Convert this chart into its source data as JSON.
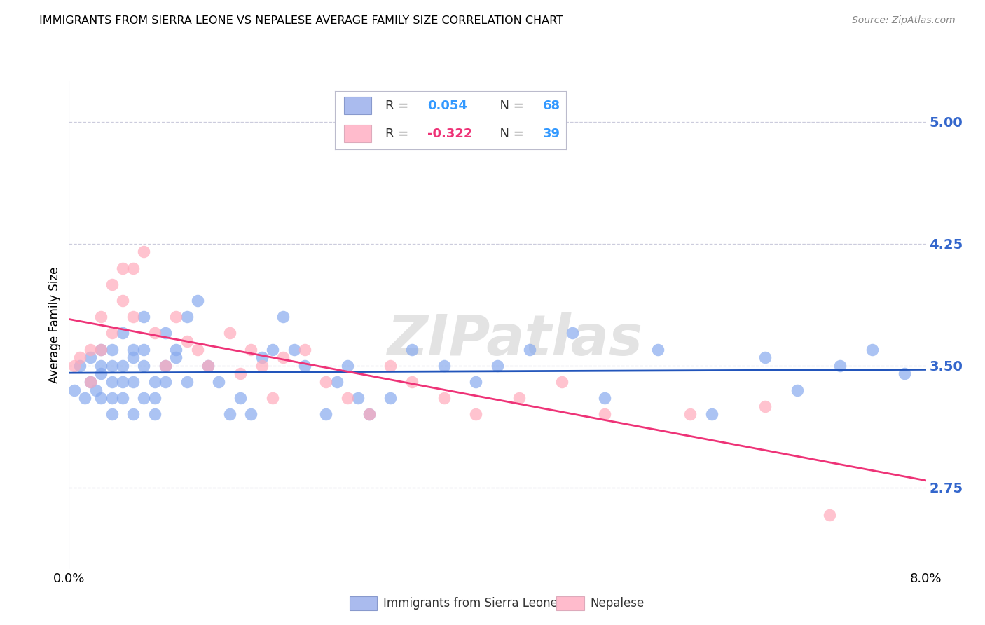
{
  "title": "IMMIGRANTS FROM SIERRA LEONE VS NEPALESE AVERAGE FAMILY SIZE CORRELATION CHART",
  "source": "Source: ZipAtlas.com",
  "ylabel": "Average Family Size",
  "xlim": [
    0.0,
    0.08
  ],
  "ylim": [
    2.25,
    5.25
  ],
  "yticks": [
    2.75,
    3.5,
    4.25,
    5.0
  ],
  "xtick_positions": [
    0.0,
    0.01,
    0.02,
    0.03,
    0.04,
    0.05,
    0.06,
    0.07,
    0.08
  ],
  "xtick_labels": [
    "0.0%",
    "",
    "",
    "",
    "",
    "",
    "",
    "",
    "8.0%"
  ],
  "ytick_color": "#3366cc",
  "background_color": "#ffffff",
  "grid_color": "#ccccdd",
  "blue_scatter_color": "#88aaee",
  "pink_scatter_color": "#ffaabb",
  "blue_line_color": "#2255bb",
  "pink_line_color": "#ee3377",
  "blue_legend_patch": "#aabbee",
  "pink_legend_patch": "#ffbbcc",
  "watermark": "ZIPatlas",
  "legend_text_color": "#333333",
  "legend_R1_val_color": "#3399ff",
  "legend_N1_val_color": "#3399ff",
  "legend_R2_val_color": "#ee3377",
  "legend_N2_val_color": "#3399ff",
  "sierra_leone_x": [
    0.0005,
    0.001,
    0.0015,
    0.002,
    0.002,
    0.0025,
    0.003,
    0.003,
    0.003,
    0.003,
    0.004,
    0.004,
    0.004,
    0.004,
    0.004,
    0.005,
    0.005,
    0.005,
    0.005,
    0.006,
    0.006,
    0.006,
    0.006,
    0.007,
    0.007,
    0.007,
    0.007,
    0.008,
    0.008,
    0.008,
    0.009,
    0.009,
    0.009,
    0.01,
    0.01,
    0.011,
    0.011,
    0.012,
    0.013,
    0.014,
    0.015,
    0.016,
    0.017,
    0.018,
    0.019,
    0.02,
    0.021,
    0.022,
    0.024,
    0.025,
    0.026,
    0.027,
    0.028,
    0.03,
    0.032,
    0.035,
    0.038,
    0.04,
    0.043,
    0.047,
    0.05,
    0.055,
    0.06,
    0.065,
    0.068,
    0.072,
    0.075,
    0.078
  ],
  "sierra_leone_y": [
    3.35,
    3.5,
    3.3,
    3.4,
    3.55,
    3.35,
    3.45,
    3.6,
    3.3,
    3.5,
    3.4,
    3.6,
    3.3,
    3.5,
    3.2,
    3.5,
    3.7,
    3.4,
    3.3,
    3.55,
    3.6,
    3.2,
    3.4,
    3.8,
    3.5,
    3.3,
    3.6,
    3.4,
    3.3,
    3.2,
    3.5,
    3.4,
    3.7,
    3.55,
    3.6,
    3.8,
    3.4,
    3.9,
    3.5,
    3.4,
    3.2,
    3.3,
    3.2,
    3.55,
    3.6,
    3.8,
    3.6,
    3.5,
    3.2,
    3.4,
    3.5,
    3.3,
    3.2,
    3.3,
    3.6,
    3.5,
    3.4,
    3.5,
    3.6,
    3.7,
    3.3,
    3.6,
    3.2,
    3.55,
    3.35,
    3.5,
    3.6,
    3.45
  ],
  "nepalese_x": [
    0.0005,
    0.001,
    0.002,
    0.002,
    0.003,
    0.003,
    0.004,
    0.004,
    0.005,
    0.005,
    0.006,
    0.006,
    0.007,
    0.008,
    0.009,
    0.01,
    0.011,
    0.012,
    0.013,
    0.015,
    0.016,
    0.017,
    0.018,
    0.019,
    0.02,
    0.022,
    0.024,
    0.026,
    0.028,
    0.03,
    0.032,
    0.035,
    0.038,
    0.042,
    0.046,
    0.05,
    0.058,
    0.065,
    0.071
  ],
  "nepalese_y": [
    3.5,
    3.55,
    3.6,
    3.4,
    3.8,
    3.6,
    3.7,
    4.0,
    4.1,
    3.9,
    3.8,
    4.1,
    4.2,
    3.7,
    3.5,
    3.8,
    3.65,
    3.6,
    3.5,
    3.7,
    3.45,
    3.6,
    3.5,
    3.3,
    3.55,
    3.6,
    3.4,
    3.3,
    3.2,
    3.5,
    3.4,
    3.3,
    3.2,
    3.3,
    3.4,
    3.2,
    3.2,
    3.25,
    2.58
  ]
}
